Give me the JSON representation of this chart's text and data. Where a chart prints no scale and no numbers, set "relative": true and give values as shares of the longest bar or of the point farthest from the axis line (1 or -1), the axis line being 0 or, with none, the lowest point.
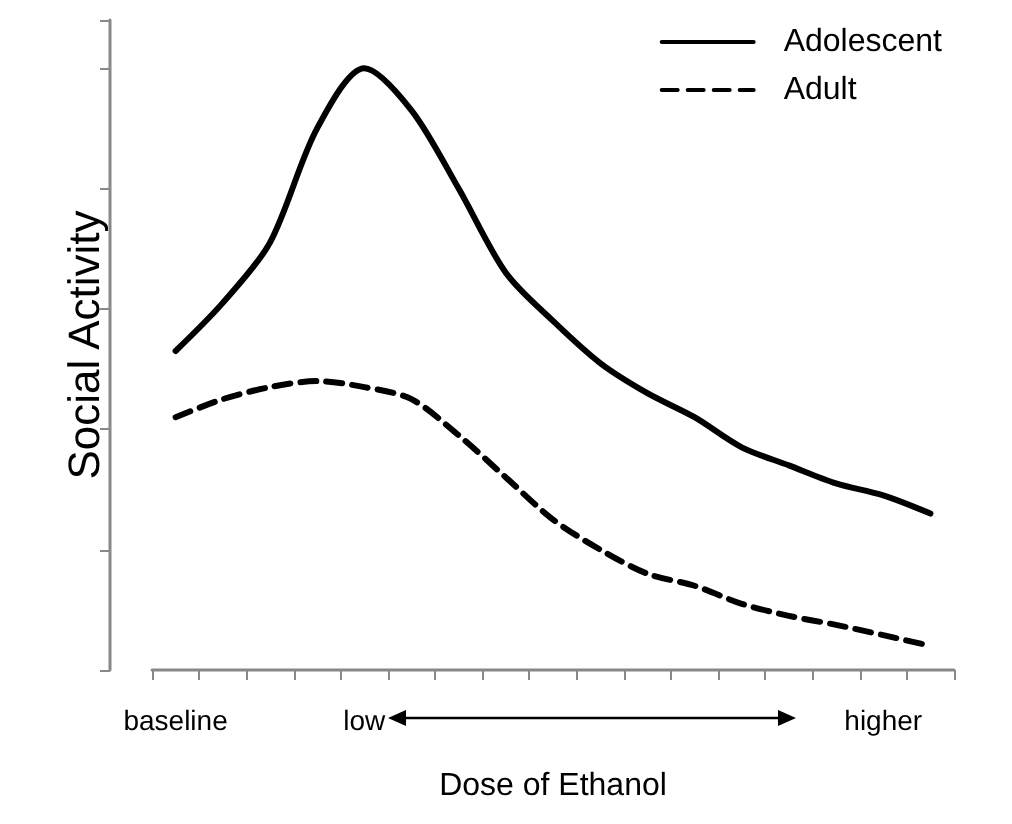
{
  "chart_data": {
    "type": "line",
    "relative": true,
    "xlabel": "Dose of Ethanol",
    "ylabel": "Social Activity",
    "categories": [
      "baseline",
      null,
      null,
      null,
      "low",
      null,
      null,
      null,
      null,
      null,
      null,
      null,
      null,
      null,
      null,
      "higher",
      null
    ],
    "series": [
      {
        "name": "Adolescent",
        "color": "#000000",
        "line_style": "solid",
        "values": [
          0.53,
          0.61,
          0.71,
          0.9,
          1,
          0.93,
          0.8,
          0.66,
          0.58,
          0.51,
          0.46,
          0.42,
          0.37,
          0.34,
          0.31,
          0.29,
          0.26
        ]
      },
      {
        "name": "Adult",
        "color": "#000000",
        "line_style": "dashed",
        "values": [
          0.42,
          0.45,
          0.47,
          0.48,
          0.47,
          0.45,
          0.39,
          0.32,
          0.25,
          0.2,
          0.16,
          0.14,
          0.11,
          0.09,
          0.075,
          0.058,
          0.04
        ]
      }
    ],
    "legend": "top right",
    "marker": "none",
    "grid": false
  }
}
